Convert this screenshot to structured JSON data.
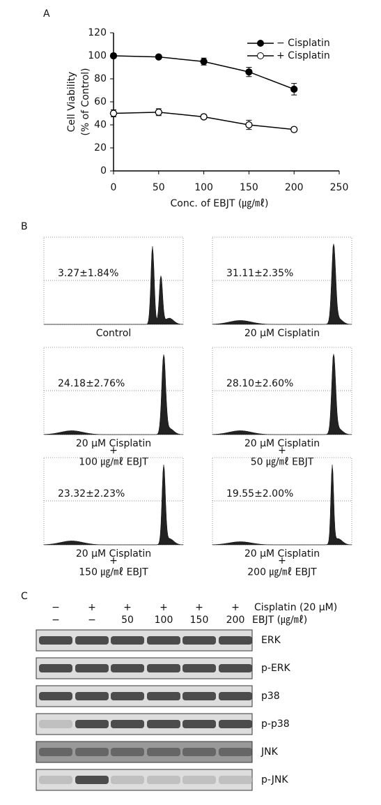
{
  "chart_data": {
    "type": "line",
    "panel_label": "A",
    "x": [
      0,
      50,
      100,
      150,
      200
    ],
    "series": [
      {
        "name": "− Cisplatin",
        "color": "#000000",
        "marker": "filled",
        "values": [
          100,
          99,
          95,
          86,
          71
        ],
        "errors": [
          2,
          1,
          3,
          4,
          5
        ]
      },
      {
        "name": "+ Cisplatin",
        "color": "#000000",
        "marker": "open",
        "values": [
          50,
          51,
          47,
          40,
          36
        ],
        "errors": [
          3,
          3,
          2,
          4,
          2
        ]
      }
    ],
    "xlabel": "Conc. of EBJT (㎍/㎖)",
    "ylabel": [
      "Cell Viability",
      "(% of Control)"
    ],
    "xlim": [
      0,
      250
    ],
    "xticks": [
      0,
      50,
      100,
      150,
      200,
      250
    ],
    "ylim": [
      0,
      120
    ],
    "yticks": [
      0,
      20,
      40,
      60,
      80,
      100,
      120
    ],
    "legend": "upper right"
  },
  "flow_panel": {
    "label": "B",
    "panels": [
      {
        "percent": "3.27±1.84%",
        "caption": [
          "Control"
        ]
      },
      {
        "percent": "31.11±2.35%",
        "caption": [
          "20 μM Cisplatin"
        ]
      },
      {
        "percent": "24.18±2.76%",
        "caption": [
          "20 μM Cisplatin",
          "+",
          "100 ㎍/㎖ EBJT"
        ]
      },
      {
        "percent": "28.10±2.60%",
        "caption": [
          "20 μM Cisplatin",
          "+",
          "50 ㎍/㎖ EBJT"
        ]
      },
      {
        "percent": "23.32±2.23%",
        "caption": [
          "20 μM Cisplatin",
          "+",
          "150 ㎍/㎖ EBJT"
        ]
      },
      {
        "percent": "19.55±2.00%",
        "caption": [
          "20 μM Cisplatin",
          "+",
          "200 ㎍/㎖ EBJT"
        ]
      }
    ]
  },
  "blot_panel": {
    "label": "C",
    "treatments": [
      {
        "label": "Cisplatin (20 μM)",
        "lanes": [
          "−",
          "+",
          "+",
          "+",
          "+",
          "+"
        ]
      },
      {
        "label": "EBJT (㎍/㎖)",
        "lanes": [
          "−",
          "−",
          "50",
          "100",
          "150",
          "200"
        ]
      }
    ],
    "proteins": [
      "ERK",
      "p-ERK",
      "p38",
      "p-p38",
      "JNK",
      "p-JNK"
    ]
  }
}
